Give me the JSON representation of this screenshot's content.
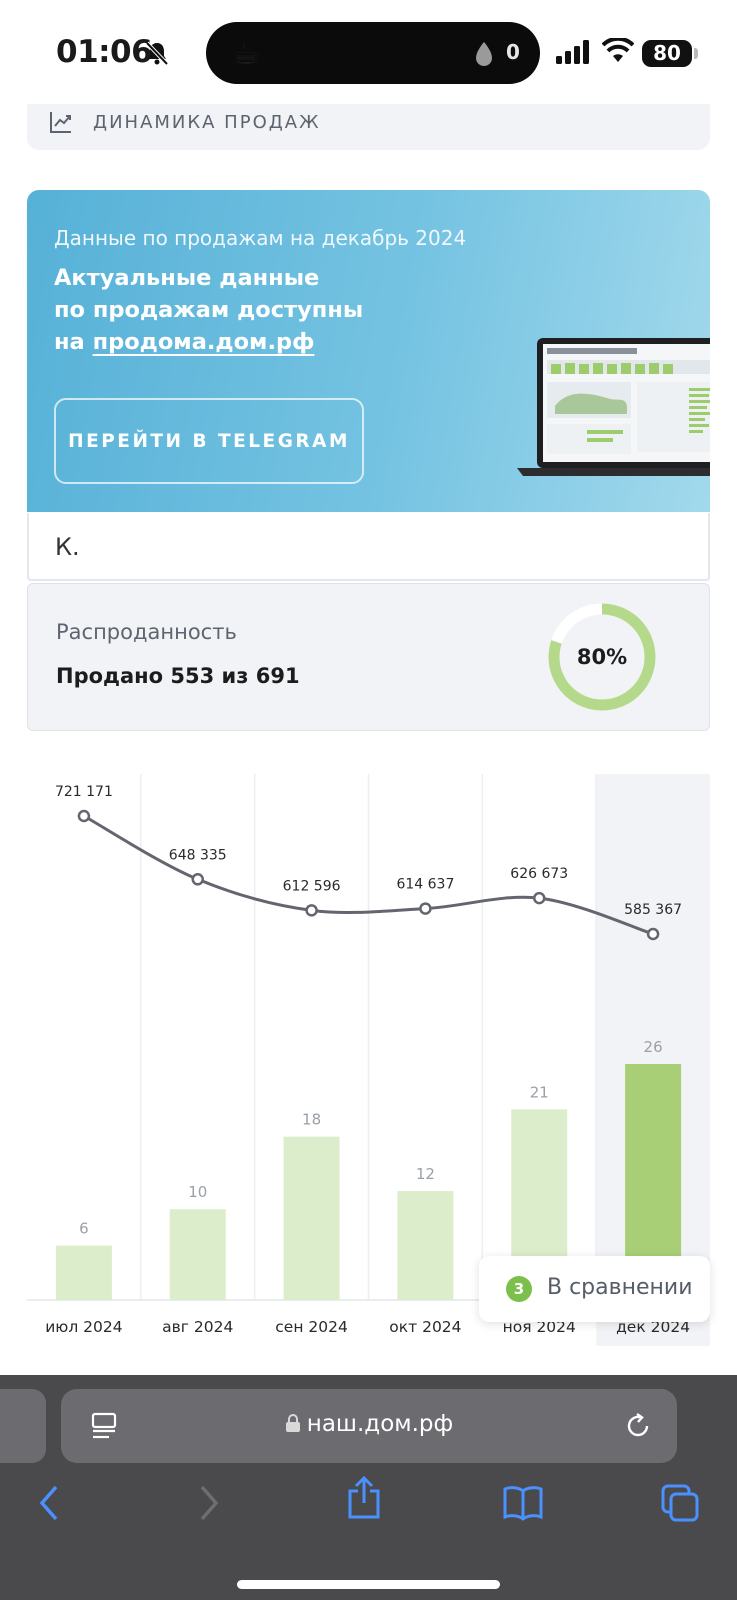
{
  "status_bar": {
    "time": "01:06",
    "island_count": "0",
    "battery": "80"
  },
  "section_header": {
    "label": "ДИНАМИКА ПРОДАЖ"
  },
  "banner": {
    "subtitle": "Данные по продажам на декабрь 2024",
    "title_line1": "Актуальные данные",
    "title_line2": "по продажам доступны",
    "title_prefix": "на ",
    "title_link": "продома.дом.рф",
    "button": "ПЕРЕЙТИ В TELEGRAM"
  },
  "k_card": {
    "text": "К."
  },
  "sold": {
    "title": "Распроданность",
    "value": "Продано 553 из 691",
    "percent_label": "80%",
    "percent": 0.8
  },
  "chart_data": {
    "type": "bar",
    "categories": [
      "июл 2024",
      "авг 2024",
      "сен 2024",
      "окт 2024",
      "ноя 2024",
      "дек 2024"
    ],
    "series": [
      {
        "type": "bar",
        "values": [
          6,
          10,
          18,
          12,
          21,
          26
        ],
        "labels": [
          "6",
          "10",
          "18",
          "12",
          "21",
          "26"
        ]
      },
      {
        "type": "line",
        "values": [
          721171,
          648335,
          612596,
          614637,
          626673,
          585367
        ],
        "labels": [
          "721 171",
          "648 335",
          "612 596",
          "614 637",
          "626 673",
          "585 367"
        ]
      }
    ],
    "highlighted_category": "дек 2024",
    "colors": {
      "bar": "#dcedcb",
      "bar_highlight": "#a8cf75",
      "line": "#63666e",
      "highlight_bg": "#f1f3f6"
    }
  },
  "compare": {
    "count": "3",
    "label": "В сравнении"
  },
  "browser": {
    "url": "наш.дом.рф"
  }
}
